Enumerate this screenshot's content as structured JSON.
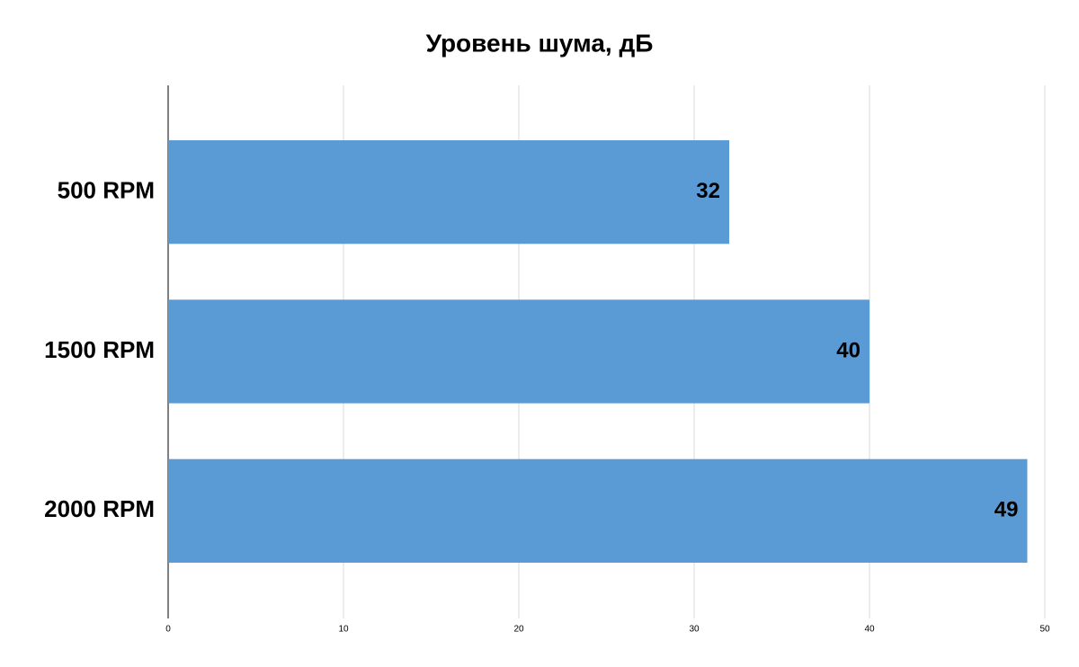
{
  "chart_data": {
    "type": "hbar",
    "title": "Уровень шума, дБ",
    "categories": [
      "500 RPM",
      "1500 RPM",
      "2000 RPM"
    ],
    "values": [
      32,
      40,
      49
    ],
    "color": "#5b9bd5",
    "xlim": [
      0,
      50
    ],
    "xticks": [
      0,
      10,
      20,
      30,
      40,
      50
    ],
    "grid": true
  }
}
